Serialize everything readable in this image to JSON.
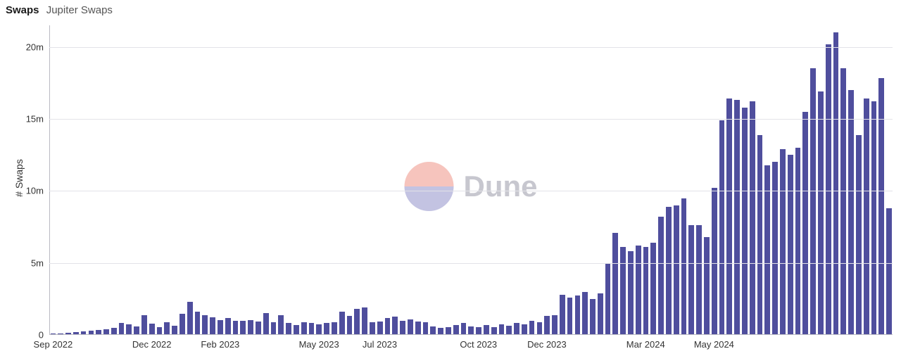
{
  "header": {
    "title": "Swaps",
    "subtitle": "Jupiter Swaps"
  },
  "y_axis": {
    "label": "# Swaps",
    "min": 0,
    "max": 21500000,
    "ticks": [
      {
        "v": 0,
        "label": "0"
      },
      {
        "v": 5000000,
        "label": "5m"
      },
      {
        "v": 10000000,
        "label": "10m"
      },
      {
        "v": 15000000,
        "label": "15m"
      },
      {
        "v": 20000000,
        "label": "20m"
      }
    ],
    "grid_color": "#e3e3e8",
    "axis_color": "#b9b9c2",
    "label_fontsize": 14,
    "tick_fontsize": 13
  },
  "x_axis": {
    "tick_labels": [
      "Sep 2022",
      "Dec 2022",
      "Feb 2023",
      "May 2023",
      "Jul 2023",
      "Oct 2023",
      "Dec 2023",
      "Mar 2024",
      "May 2024"
    ],
    "tick_indices": [
      0,
      13,
      22,
      35,
      43,
      56,
      65,
      78,
      87
    ],
    "tick_fontsize": 13
  },
  "series": {
    "type": "bar",
    "color": "#4f4e9d",
    "bar_width_frac": 0.72,
    "values": [
      80000,
      120000,
      150000,
      200000,
      230000,
      280000,
      320000,
      400000,
      480000,
      850000,
      720000,
      600000,
      1350000,
      780000,
      550000,
      880000,
      650000,
      1450000,
      2300000,
      1600000,
      1350000,
      1200000,
      1050000,
      1150000,
      1000000,
      980000,
      1050000,
      950000,
      1500000,
      900000,
      1350000,
      850000,
      700000,
      900000,
      850000,
      750000,
      850000,
      900000,
      1600000,
      1300000,
      1800000,
      1900000,
      900000,
      950000,
      1150000,
      1250000,
      1000000,
      1100000,
      950000,
      900000,
      600000,
      500000,
      550000,
      700000,
      850000,
      600000,
      550000,
      700000,
      550000,
      750000,
      650000,
      850000,
      750000,
      1000000,
      900000,
      1300000,
      1350000,
      2800000,
      2600000,
      2750000,
      3000000,
      2500000,
      2900000,
      5000000,
      7100000,
      6100000,
      5800000,
      6200000,
      6100000,
      6400000,
      8200000,
      8900000,
      9000000,
      9500000,
      7600000,
      7600000,
      6800000,
      10200000,
      14900000,
      16400000,
      16300000,
      15800000,
      16200000,
      13900000,
      11800000,
      12000000,
      12900000,
      12500000,
      13000000,
      15500000,
      18500000,
      16900000,
      20200000,
      21000000,
      18500000,
      17000000,
      13900000,
      16400000,
      16200000,
      17850000,
      8800000
    ]
  },
  "watermark": {
    "text": "Dune",
    "text_color": "#c7c7cf",
    "circle_top": "#f6c4bd",
    "circle_bottom": "#c3c3e2",
    "text_fontsize": 42
  },
  "background_color": "#ffffff"
}
